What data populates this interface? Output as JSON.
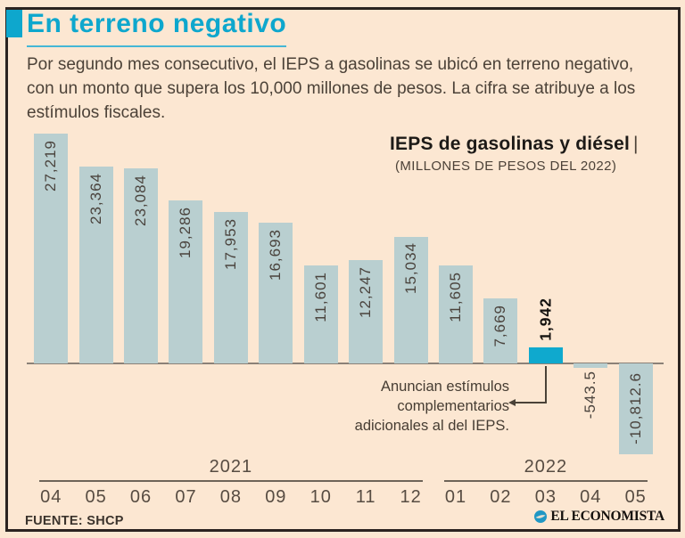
{
  "header": {
    "title": "En terreno negativo",
    "intro": "Por segundo mes consecutivo, el IEPS a gasolinas se ubicó en terreno negativo, con un monto que supera los 10,000 millones de pesos. La cifra se atribuye a los estímulos fiscales."
  },
  "chart_data": {
    "type": "bar",
    "title": "IEPS de gasolinas y diésel",
    "title_separator": "|",
    "subtitle": "(MILLONES DE PESOS DEL 2022)",
    "categories": [
      "04",
      "05",
      "06",
      "07",
      "08",
      "09",
      "10",
      "11",
      "12",
      "01",
      "02",
      "03",
      "04",
      "05"
    ],
    "year_groups": [
      {
        "label": "2021",
        "span": 9
      },
      {
        "label": "2022",
        "span": 5
      }
    ],
    "values": [
      27219,
      23364,
      23084,
      19286,
      17953,
      16693,
      11601,
      12247,
      15034,
      11605,
      7669,
      1942,
      -543.5,
      -10812.6
    ],
    "value_labels": [
      "27,219",
      "23,364",
      "23,084",
      "19,286",
      "17,953",
      "16,693",
      "11,601",
      "12,247",
      "15,034",
      "11,605",
      "7,669",
      "1,942",
      "-543.5",
      "-10,812.6"
    ],
    "highlight_index": 11,
    "annotation": "Anuncian estímulos complementarios adicionales al del IEPS.",
    "ylim": [
      -11000,
      28000
    ],
    "legend": "none",
    "grid": "off",
    "colors": {
      "bar": "#b9cfd0",
      "highlight": "#0fa9ce",
      "accent": "#0ea7cd",
      "background": "#fce7d2"
    }
  },
  "footer": {
    "source": "FUENTE: SHCP",
    "brand": "EL ECONOMISTA",
    "brand_icon": "globe-icon"
  }
}
